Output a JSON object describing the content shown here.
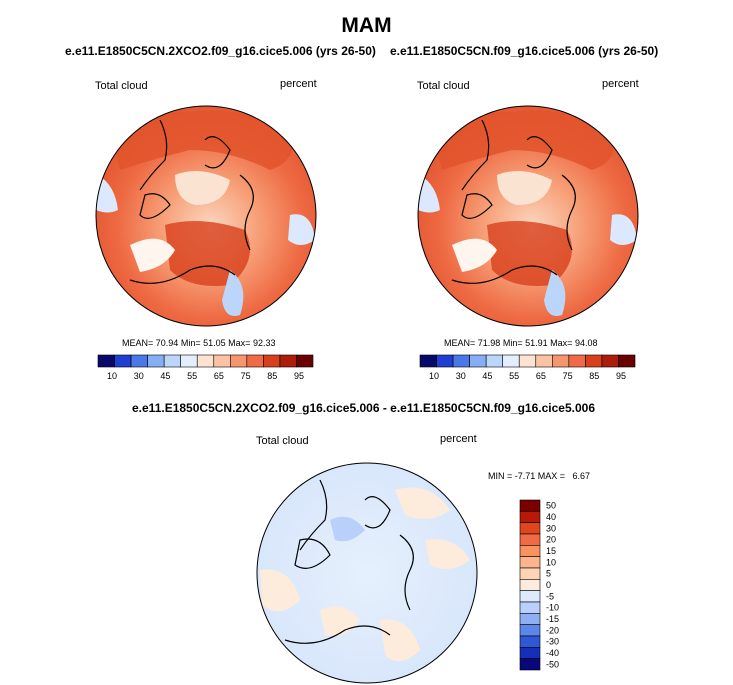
{
  "figure": {
    "title": "MAM",
    "panels": [
      {
        "id": "top-left",
        "case_label": "e.e11.E1850C5CN.2XCO2.f09_g16.cice5.006 (yrs 26-50)",
        "variable": "Total cloud",
        "units": "percent",
        "stats": {
          "mean_label": "MEAN=",
          "mean": "70.94",
          "min_label": "Min=",
          "min": "51.05",
          "max_label": "Max=",
          "max": "92.33"
        }
      },
      {
        "id": "top-right",
        "case_label": "e.e11.E1850C5CN.f09_g16.cice5.006 (yrs 26-50)",
        "variable": "Total cloud",
        "units": "percent",
        "stats": {
          "mean_label": "MEAN=",
          "mean": "71.98",
          "min_label": "Min=",
          "min": "51.91",
          "max_label": "Max=",
          "max": "94.08"
        }
      }
    ],
    "diff_panel": {
      "title": "e.e11.E1850C5CN.2XCO2.f09_g16.cice5.006 - e.e11.E1850C5CN.f09_g16.cice5.006",
      "variable": "Total cloud",
      "units": "percent",
      "stats": "MIN = -7.71 MAX =   6.67"
    }
  },
  "colorbars": {
    "abs": {
      "labels": [
        "10",
        "30",
        "45",
        "55",
        "65",
        "75",
        "85",
        "95"
      ],
      "colors": [
        "#08086b",
        "#1f3fd1",
        "#4a78e8",
        "#86aef5",
        "#bcd6fb",
        "#e3efff",
        "#fde4d2",
        "#fbc3a3",
        "#f6966f",
        "#f06b45",
        "#d8401c",
        "#ac1d0b",
        "#6b0000"
      ]
    },
    "diff": {
      "labels": [
        "50",
        "40",
        "30",
        "20",
        "15",
        "10",
        "5",
        "0",
        "-5",
        "-10",
        "-15",
        "-20",
        "-30",
        "-40",
        "-50"
      ],
      "colors": [
        "#7a0000",
        "#b81a0a",
        "#e0461d",
        "#f06b45",
        "#f8925f",
        "#fbb48b",
        "#fdd4b6",
        "#fdebdc",
        "#dde9fc",
        "#b8d0fa",
        "#8eb0f3",
        "#5c86ea",
        "#2f57d6",
        "#1430b8",
        "#08087a"
      ]
    }
  }
}
